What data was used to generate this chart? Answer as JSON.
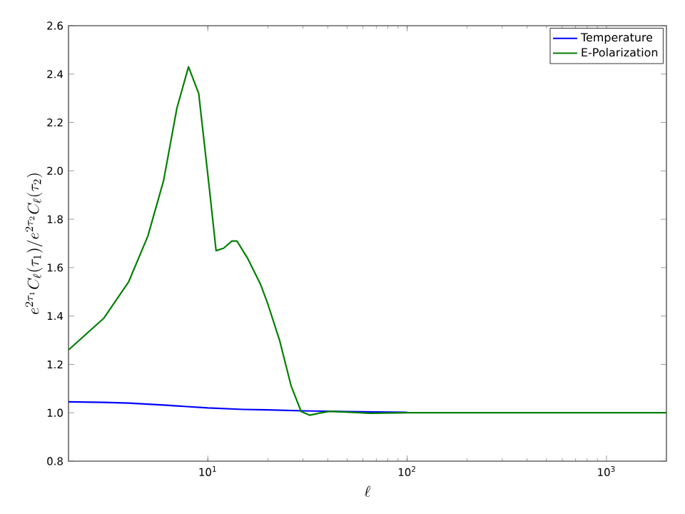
{
  "chart_data": {
    "type": "line",
    "xlabel": "\\ell",
    "ylabel": "e^{2\\tau_1} C_\\ell(\\tau_1)/e^{2\\tau_2} C_\\ell(\\tau_2)",
    "log": "x",
    "xlim": [
      2,
      2000
    ],
    "ylim": [
      0.8,
      2.6
    ],
    "xticks": [
      {
        "value": 10,
        "label": "10$^{1}$"
      },
      {
        "value": 100,
        "label": "10$^{2}$"
      },
      {
        "value": 1000,
        "label": "10$^{3}$"
      }
    ],
    "yticks": [
      0.8,
      {
        "value": 1.0,
        "label": "1.0"
      },
      1.2,
      1.4,
      1.6,
      1.8,
      {
        "value": 2.0,
        "label": "2.0"
      },
      2.2,
      2.4,
      2.6
    ],
    "legend": "top right",
    "series": [
      {
        "name": "Temperature",
        "color": "#0000ff",
        "x": [
          2,
          3,
          4,
          6,
          10,
          15,
          20,
          30,
          50,
          100
        ],
        "values": [
          1.045,
          1.043,
          1.04,
          1.032,
          1.02,
          1.014,
          1.012,
          1.008,
          1.005,
          1.002
        ]
      },
      {
        "name": "E-Polarization",
        "color": "#008000",
        "x": [
          2,
          3,
          4,
          5,
          6,
          7,
          8,
          9,
          10.2,
          11,
          12,
          13.2,
          14,
          15.8,
          18.4,
          20,
          22.9,
          26.2,
          29.4,
          32.4,
          36,
          40.9,
          65,
          100,
          300,
          1000,
          2000
        ],
        "values": [
          1.26,
          1.39,
          1.54,
          1.73,
          1.96,
          2.26,
          2.43,
          2.32,
          1.92,
          1.67,
          1.68,
          1.71,
          1.71,
          1.64,
          1.53,
          1.45,
          1.3,
          1.11,
          1.005,
          0.99,
          0.998,
          1.006,
          0.998,
          1.0,
          1.0,
          1.0,
          1.0
        ]
      }
    ]
  }
}
